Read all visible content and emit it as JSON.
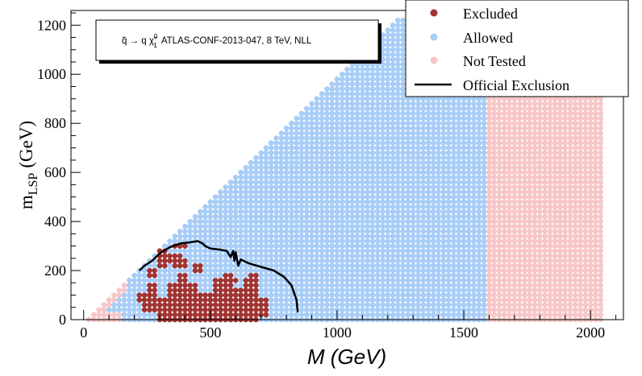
{
  "chart_data": {
    "type": "scatter",
    "title_box": {
      "prefix": "q̃ → q χ̃",
      "sup": "0",
      "sub": "1",
      "text": "ATLAS-CONF-2013-047, 8 TeV, NLL"
    },
    "xlabel": "M (GeV)",
    "ylabel_main": "m",
    "ylabel_sub": "LSP",
    "ylabel_unit": "(GeV)",
    "xlim": [
      -50,
      2130
    ],
    "ylim": [
      0,
      1260
    ],
    "xticks": [
      0,
      500,
      1000,
      1500,
      2000
    ],
    "yticks": [
      0,
      200,
      400,
      600,
      800,
      1000,
      1200
    ],
    "grid": false,
    "legend_position": "top-right",
    "colors": {
      "excluded": "#a13333",
      "allowed": "#a8cdf7",
      "not_tested": "#f7c6c6",
      "official": "#000000"
    },
    "legend": [
      {
        "key": "excluded",
        "label": "Excluded"
      },
      {
        "key": "allowed",
        "label": "Allowed"
      },
      {
        "key": "not_tested",
        "label": "Not Tested"
      },
      {
        "key": "official",
        "label": "Official Exclusion"
      }
    ],
    "grid_points": {
      "x_range": [
        20,
        2040
      ],
      "y_range": [
        0,
        1220
      ],
      "step_x": 20,
      "step_y": 20,
      "condition": "y <= x - 20",
      "allowed_x_max": 1580,
      "low_mass_not_tested_below_y": 30
    },
    "excluded_polygons": [
      [
        [
          210,
          110
        ],
        [
          260,
          110
        ],
        [
          260,
          150
        ],
        [
          290,
          150
        ],
        [
          290,
          100
        ],
        [
          330,
          100
        ],
        [
          330,
          160
        ],
        [
          370,
          160
        ],
        [
          370,
          200
        ],
        [
          420,
          200
        ],
        [
          420,
          150
        ],
        [
          460,
          150
        ],
        [
          460,
          110
        ],
        [
          520,
          110
        ],
        [
          520,
          180
        ],
        [
          590,
          180
        ],
        [
          590,
          140
        ],
        [
          640,
          140
        ],
        [
          640,
          180
        ],
        [
          690,
          180
        ],
        [
          690,
          100
        ],
        [
          740,
          100
        ],
        [
          740,
          20
        ],
        [
          700,
          20
        ],
        [
          700,
          0
        ],
        [
          300,
          0
        ],
        [
          300,
          40
        ],
        [
          240,
          40
        ],
        [
          240,
          70
        ],
        [
          200,
          70
        ]
      ],
      [
        [
          240,
          170
        ],
        [
          290,
          170
        ],
        [
          290,
          210
        ],
        [
          330,
          210
        ],
        [
          330,
          250
        ],
        [
          300,
          250
        ],
        [
          300,
          220
        ],
        [
          250,
          220
        ]
      ],
      [
        [
          300,
          260
        ],
        [
          340,
          260
        ],
        [
          340,
          240
        ],
        [
          390,
          240
        ],
        [
          390,
          280
        ],
        [
          340,
          280
        ],
        [
          340,
          300
        ],
        [
          300,
          300
        ]
      ],
      [
        [
          350,
          220
        ],
        [
          410,
          220
        ],
        [
          410,
          250
        ],
        [
          350,
          250
        ]
      ],
      [
        [
          360,
          100
        ],
        [
          410,
          100
        ],
        [
          410,
          130
        ],
        [
          360,
          130
        ]
      ],
      [
        [
          440,
          200
        ],
        [
          480,
          200
        ],
        [
          480,
          240
        ],
        [
          440,
          240
        ]
      ],
      [
        [
          570,
          150
        ],
        [
          620,
          150
        ],
        [
          620,
          170
        ],
        [
          570,
          170
        ]
      ],
      [
        [
          660,
          160
        ],
        [
          700,
          160
        ],
        [
          700,
          200
        ],
        [
          660,
          200
        ]
      ],
      [
        [
          550,
          180
        ],
        [
          600,
          180
        ],
        [
          600,
          200
        ],
        [
          550,
          200
        ]
      ],
      [
        [
          260,
          300
        ],
        [
          300,
          300
        ],
        [
          300,
          320
        ],
        [
          260,
          320
        ]
      ],
      [
        [
          360,
          290
        ],
        [
          420,
          290
        ],
        [
          420,
          310
        ],
        [
          360,
          310
        ]
      ]
    ],
    "official_exclusion": [
      [
        220,
        200
      ],
      [
        240,
        220
      ],
      [
        270,
        240
      ],
      [
        300,
        270
      ],
      [
        340,
        295
      ],
      [
        380,
        310
      ],
      [
        420,
        315
      ],
      [
        450,
        320
      ],
      [
        470,
        310
      ],
      [
        480,
        300
      ],
      [
        500,
        290
      ],
      [
        540,
        285
      ],
      [
        565,
        280
      ],
      [
        580,
        255
      ],
      [
        590,
        280
      ],
      [
        595,
        240
      ],
      [
        600,
        275
      ],
      [
        610,
        220
      ],
      [
        620,
        245
      ],
      [
        650,
        230
      ],
      [
        700,
        215
      ],
      [
        750,
        200
      ],
      [
        790,
        175
      ],
      [
        820,
        140
      ],
      [
        840,
        80
      ],
      [
        845,
        30
      ]
    ]
  }
}
